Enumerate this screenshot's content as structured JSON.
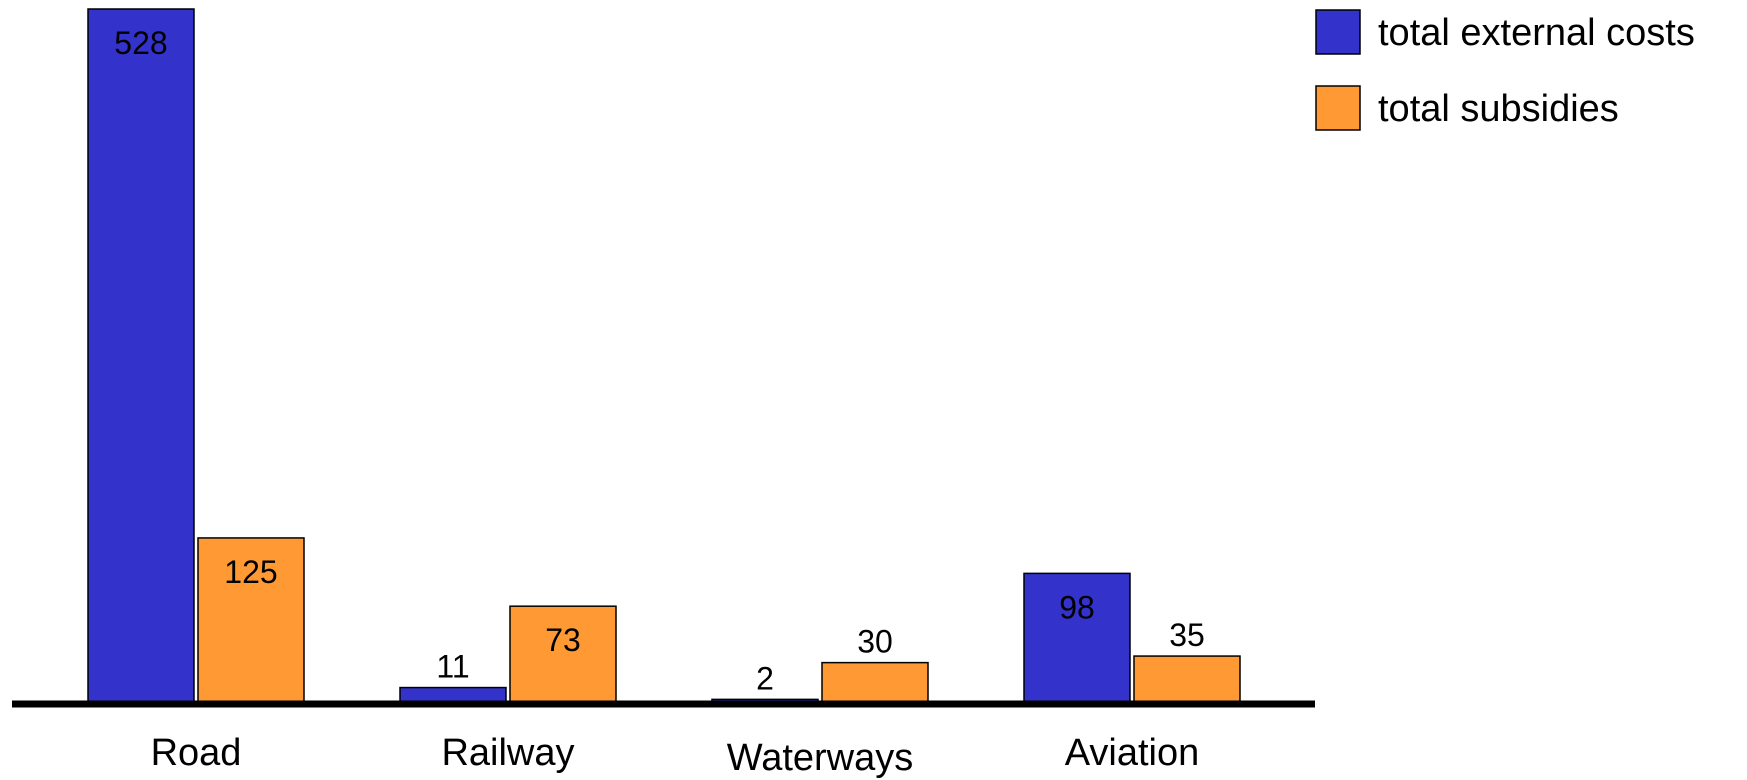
{
  "chart_data": {
    "type": "bar",
    "categories": [
      "Road",
      "Railway",
      "Waterways",
      "Aviation"
    ],
    "series": [
      {
        "name": "total external costs",
        "values": [
          528,
          11,
          2,
          98
        ],
        "color": "#3333cc"
      },
      {
        "name": "total subsidies",
        "values": [
          125,
          73,
          30,
          35
        ],
        "color": "#ff9933"
      }
    ],
    "ylim": [
      0,
      528
    ],
    "grid": false,
    "legend": "top-right",
    "title": "",
    "xlabel": "",
    "ylabel": ""
  }
}
